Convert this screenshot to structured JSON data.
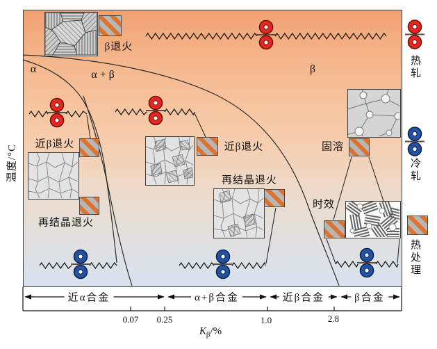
{
  "figure": {
    "y_axis_label": "温度/°C",
    "x_axis": {
      "k": "K",
      "sub": "β",
      "unit": "/%",
      "ticks": [
        "0.07",
        "0.25",
        "1.0",
        "2.8"
      ]
    },
    "phases": {
      "alpha": "α",
      "alpha_plus_beta": "α + β",
      "beta": "β"
    },
    "processes": {
      "beta_anneal": "β退火",
      "near_beta_anneal_left": "近β退火",
      "near_beta_anneal_mid": "近β退火",
      "recryst_anneal_left": "再结晶退火",
      "recryst_anneal_right": "再结晶退火",
      "solution": "固溶",
      "aging": "时效"
    },
    "alloy_ranges": [
      "近α合金",
      "α+β合金",
      "近β合金",
      "β合金"
    ],
    "legend": [
      {
        "label": "热轧"
      },
      {
        "label": "冷轧"
      },
      {
        "label": "热处理"
      }
    ]
  },
  "colors": {
    "hot_roll": "#e62720",
    "hot_roll_edge": "#6b100a",
    "cold_roll": "#2453a4",
    "cold_roll_edge": "#0c2150",
    "hatch_stripe": "#df732d",
    "hatch_base": "#b7b7b7",
    "line": "#222222"
  }
}
